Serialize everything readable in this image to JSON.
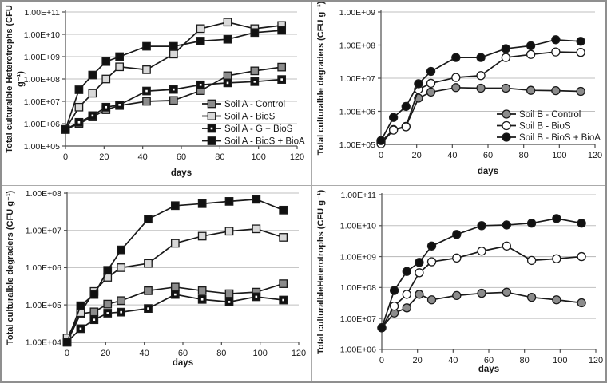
{
  "figure": {
    "xlabel": "days",
    "colors": {
      "line": "#1a1a1a",
      "grid": "#bfbfbf",
      "axis": "#4d4d4d",
      "text": "#1a1a1a",
      "gray_fill": "#8c8c8c",
      "light_fill": "#d9d9d9",
      "black_fill": "#111111",
      "white_fill": "#ffffff",
      "frame_border": "#8f8f8f"
    }
  },
  "chart_data": [
    {
      "id": "soil-a-heterotrophs",
      "type": "line",
      "ylabel_lines": [
        "Total culturalble Heterotrophs (CFU",
        "g⁻¹)"
      ],
      "xlabel": "days",
      "y_scale": "log",
      "ylim_exp": [
        5,
        11
      ],
      "y_tick_labels": [
        "1.00E+05",
        "1.00E+06",
        "1.00E+07",
        "1.00E+08",
        "1.00E+09",
        "1.00E+10",
        "1.00E+11"
      ],
      "xlim": [
        0,
        120
      ],
      "x_ticks": [
        0,
        20,
        40,
        60,
        80,
        100,
        120
      ],
      "x": [
        0,
        7,
        14,
        21,
        28,
        42,
        56,
        70,
        84,
        98,
        112
      ],
      "legend": true,
      "series": [
        {
          "key": "soilA-control",
          "name": "Soil A - Control",
          "marker": "square",
          "fill": "#8c8c8c",
          "values": [
            550000.0,
            1000000.0,
            2000000.0,
            4200000.0,
            6500000.0,
            10000000.0,
            11000000.0,
            30000000.0,
            140000000.0,
            230000000.0,
            340000000.0
          ]
        },
        {
          "key": "soilA-bios",
          "name": "Soil A  - BioS",
          "marker": "square",
          "fill": "#d9d9d9",
          "values": [
            550000.0,
            5500000.0,
            23000000.0,
            100000000.0,
            350000000.0,
            260000000.0,
            1300000000.0,
            18000000000.0,
            35000000000.0,
            18000000000.0,
            25000000000.0
          ]
        },
        {
          "key": "soilA-g-bios",
          "name": "Soil A - G + BioS",
          "marker": "square-dot",
          "fill": "#111111",
          "values": [
            550000.0,
            1150000.0,
            2300000.0,
            5500000.0,
            7000000.0,
            29000000.0,
            34000000.0,
            55000000.0,
            67000000.0,
            76000000.0,
            95000000.0
          ]
        },
        {
          "key": "soilA-bios-bioa",
          "name": "Soil A - BioS + BioA",
          "marker": "square",
          "fill": "#111111",
          "values": [
            550000.0,
            33000000.0,
            150000000.0,
            600000000.0,
            1000000000.0,
            2900000000.0,
            2900000000.0,
            5000000000.0,
            6000000000.0,
            12000000000.0,
            15000000000.0
          ]
        }
      ]
    },
    {
      "id": "soil-b-degraders",
      "type": "line",
      "ylabel_lines": [
        "Total culturalble degraders (CFU g⁻¹)"
      ],
      "xlabel": "days",
      "y_scale": "log",
      "ylim_exp": [
        5,
        9
      ],
      "y_tick_labels": [
        "1.00E+05",
        "1.00E+06",
        "1.00E+07",
        "1.00E+08",
        "1.00E+09"
      ],
      "xlim": [
        0,
        120
      ],
      "x_ticks": [
        0,
        20,
        40,
        60,
        80,
        100,
        120
      ],
      "x": [
        0,
        7,
        14,
        21,
        28,
        42,
        56,
        70,
        84,
        98,
        112
      ],
      "legend": true,
      "series": [
        {
          "key": "soilB-control",
          "name": "Soil B - Control",
          "marker": "circle",
          "fill": "#8c8c8c",
          "values": [
            120000.0,
            280000.0,
            350000.0,
            2500000.0,
            3800000.0,
            5200000.0,
            5000000.0,
            5000000.0,
            4300000.0,
            4200000.0,
            4000000.0
          ]
        },
        {
          "key": "soilB-bios",
          "name": "Soil B  - BioS",
          "marker": "circle",
          "fill": "#ffffff",
          "values": [
            105000.0,
            270000.0,
            340000.0,
            4600000.0,
            7000000.0,
            10500000.0,
            12000000.0,
            42000000.0,
            52000000.0,
            62000000.0,
            60000000.0
          ]
        },
        {
          "key": "soilB-bios-bioa",
          "name": "Soil B - BioS + BioA",
          "marker": "circle",
          "fill": "#111111",
          "values": [
            130000.0,
            650000.0,
            1400000.0,
            6800000.0,
            16000000.0,
            42000000.0,
            42000000.0,
            78000000.0,
            95000000.0,
            145000000.0,
            130000000.0
          ]
        }
      ]
    },
    {
      "id": "soil-a-degraders",
      "type": "line",
      "ylabel_lines": [
        "Total culturalble degraders (CFU g⁻¹)"
      ],
      "xlabel": "days",
      "y_scale": "log",
      "ylim_exp": [
        4,
        8
      ],
      "y_tick_labels": [
        "1.00E+04",
        "1.00E+05",
        "1.00E+06",
        "1.00E+07",
        "1.00E+08"
      ],
      "xlim": [
        0,
        120
      ],
      "x_ticks": [
        0,
        20,
        40,
        60,
        80,
        100,
        120
      ],
      "x": [
        0,
        7,
        14,
        21,
        28,
        42,
        56,
        70,
        84,
        98,
        112
      ],
      "legend": false,
      "series": [
        {
          "key": "soilA-control",
          "name": "Soil A - Control",
          "marker": "square",
          "fill": "#8c8c8c",
          "values": [
            10000.0,
            58000.0,
            65000.0,
            105000.0,
            130000.0,
            240000.0,
            300000.0,
            240000.0,
            200000.0,
            220000.0,
            370000.0
          ]
        },
        {
          "key": "soilA-bios",
          "name": "Soil A  - BioS",
          "marker": "square",
          "fill": "#d9d9d9",
          "values": [
            13000.0,
            62000.0,
            230000.0,
            550000.0,
            1000000.0,
            1300000.0,
            4500000.0,
            7000000.0,
            9500000.0,
            11000000.0,
            6500000.0
          ]
        },
        {
          "key": "soilA-g-bios",
          "name": "Soil A - G + BioS",
          "marker": "square-dot",
          "fill": "#111111",
          "values": [
            10000.0,
            23000.0,
            40000.0,
            60000.0,
            64000.0,
            80000.0,
            190000.0,
            140000.0,
            120000.0,
            165000.0,
            135000.0
          ]
        },
        {
          "key": "soilA-bios-bioa",
          "name": "Soil A - BioS + BioA",
          "marker": "square",
          "fill": "#111111",
          "values": [
            10000.0,
            95000.0,
            190000.0,
            850000.0,
            3000000.0,
            20000000.0,
            46000000.0,
            52000000.0,
            60000000.0,
            68000000.0,
            35000000.0
          ]
        }
      ]
    },
    {
      "id": "soil-b-heterotrophs",
      "type": "line",
      "ylabel_lines": [
        "Total culturalbleHeterotrophs (CFU g⁻¹)"
      ],
      "xlabel": "days",
      "y_scale": "log",
      "ylim_exp": [
        6,
        11
      ],
      "y_tick_labels": [
        "1.00E+06",
        "1.00E+07",
        "1.00E+08",
        "1.00E+09",
        "1.00E+10",
        "1.00E+11"
      ],
      "xlim": [
        0,
        120
      ],
      "x_ticks": [
        0,
        20,
        40,
        60,
        80,
        100,
        120
      ],
      "x": [
        0,
        7,
        14,
        21,
        28,
        42,
        56,
        70,
        84,
        98,
        112
      ],
      "legend": false,
      "series": [
        {
          "key": "soilB-control",
          "name": "Soil B - Control",
          "marker": "circle",
          "fill": "#8c8c8c",
          "values": [
            5000000.0,
            15000000.0,
            22000000.0,
            60000000.0,
            40000000.0,
            55000000.0,
            65000000.0,
            70000000.0,
            48000000.0,
            40000000.0,
            32000000.0
          ]
        },
        {
          "key": "soilB-bios",
          "name": "Soil B  - BioS",
          "marker": "circle",
          "fill": "#ffffff",
          "values": [
            5000000.0,
            25000000.0,
            60000000.0,
            300000000.0,
            680000000.0,
            900000000.0,
            1500000000.0,
            2200000000.0,
            750000000.0,
            850000000.0,
            1000000000.0
          ]
        },
        {
          "key": "soilB-bios-bioa",
          "name": "Soil B - BioS + BioA",
          "marker": "circle",
          "fill": "#111111",
          "values": [
            5000000.0,
            80000000.0,
            330000000.0,
            650000000.0,
            2200000000.0,
            5200000000.0,
            10000000000.0,
            10500000000.0,
            12000000000.0,
            17000000000.0,
            12000000000.0
          ]
        }
      ]
    }
  ]
}
